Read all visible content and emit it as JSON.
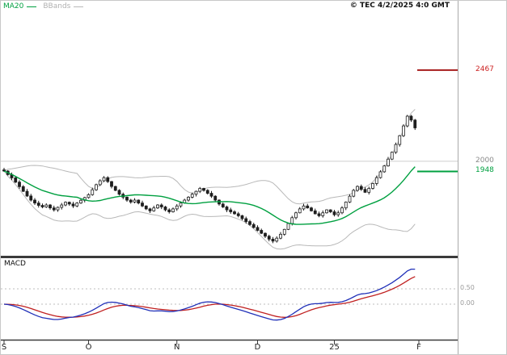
{
  "header": {
    "copyright": "© TEC 4/2/2025 4:0 GMT"
  },
  "legend": {
    "ma20": "MA20",
    "bbands": "BBands"
  },
  "levels": {
    "resistance": {
      "value": 2467,
      "label": "2467"
    },
    "gridline": {
      "value": 2000,
      "label": "2000"
    },
    "support": {
      "value": 1948,
      "label": "1948"
    }
  },
  "macd_panel": {
    "label": "MACD",
    "gridlines": [
      {
        "value": 0.5,
        "label": "0.50"
      },
      {
        "value": 0.0,
        "label": "0.00"
      }
    ]
  },
  "colors": {
    "ma20": "#00A040",
    "bbands": "#b8b8b8",
    "resistance_line": "#a61c1c",
    "support_line": "#00A040",
    "gridline": "#cfcfcf",
    "candle": "#1e1e1e",
    "macd_line": "#2030b8",
    "macd_signal": "#c02020",
    "axis": "#3a3a3a",
    "panel_grid": "#bdbdbd"
  },
  "chart_data": {
    "type": "candlestick",
    "title": "",
    "indicators": [
      "MA20",
      "BBands(20,2)",
      "MACD(12,26,9)"
    ],
    "ylim": [
      1520,
      2760
    ],
    "levels": {
      "resistance": 2467,
      "support": 1948,
      "grid": 2000
    },
    "x_axis": {
      "ticks": [
        {
          "label": "S",
          "index": 0
        },
        {
          "label": "O",
          "index": 22
        },
        {
          "label": "N",
          "index": 45
        },
        {
          "label": "D",
          "index": 66
        },
        {
          "label": "25",
          "index": 86
        },
        {
          "label": "F",
          "index": 108
        }
      ]
    },
    "closes": [
      1950,
      1932,
      1915,
      1893,
      1870,
      1846,
      1822,
      1801,
      1786,
      1774,
      1766,
      1776,
      1761,
      1751,
      1764,
      1776,
      1790,
      1781,
      1771,
      1786,
      1800,
      1814,
      1829,
      1854,
      1880,
      1900,
      1916,
      1896,
      1871,
      1851,
      1831,
      1816,
      1801,
      1791,
      1801,
      1786,
      1771,
      1756,
      1746,
      1761,
      1776,
      1766,
      1751,
      1741,
      1756,
      1771,
      1786,
      1801,
      1816,
      1831,
      1846,
      1861,
      1851,
      1836,
      1821,
      1801,
      1781,
      1766,
      1751,
      1741,
      1731,
      1721,
      1706,
      1691,
      1676,
      1661,
      1646,
      1631,
      1616,
      1601,
      1591,
      1606,
      1626,
      1651,
      1681,
      1711,
      1736,
      1756,
      1771,
      1761,
      1746,
      1731,
      1721,
      1736,
      1751,
      1741,
      1726,
      1736,
      1761,
      1791,
      1821,
      1851,
      1871,
      1856,
      1841,
      1861,
      1886,
      1916,
      1946,
      1976,
      2011,
      2046,
      2086,
      2131,
      2181,
      2231,
      2211,
      2171
    ],
    "macd_scale_note": "macd displayed as (EMA12-EMA26)/100, gridlines at 0.50 and 0.00"
  }
}
